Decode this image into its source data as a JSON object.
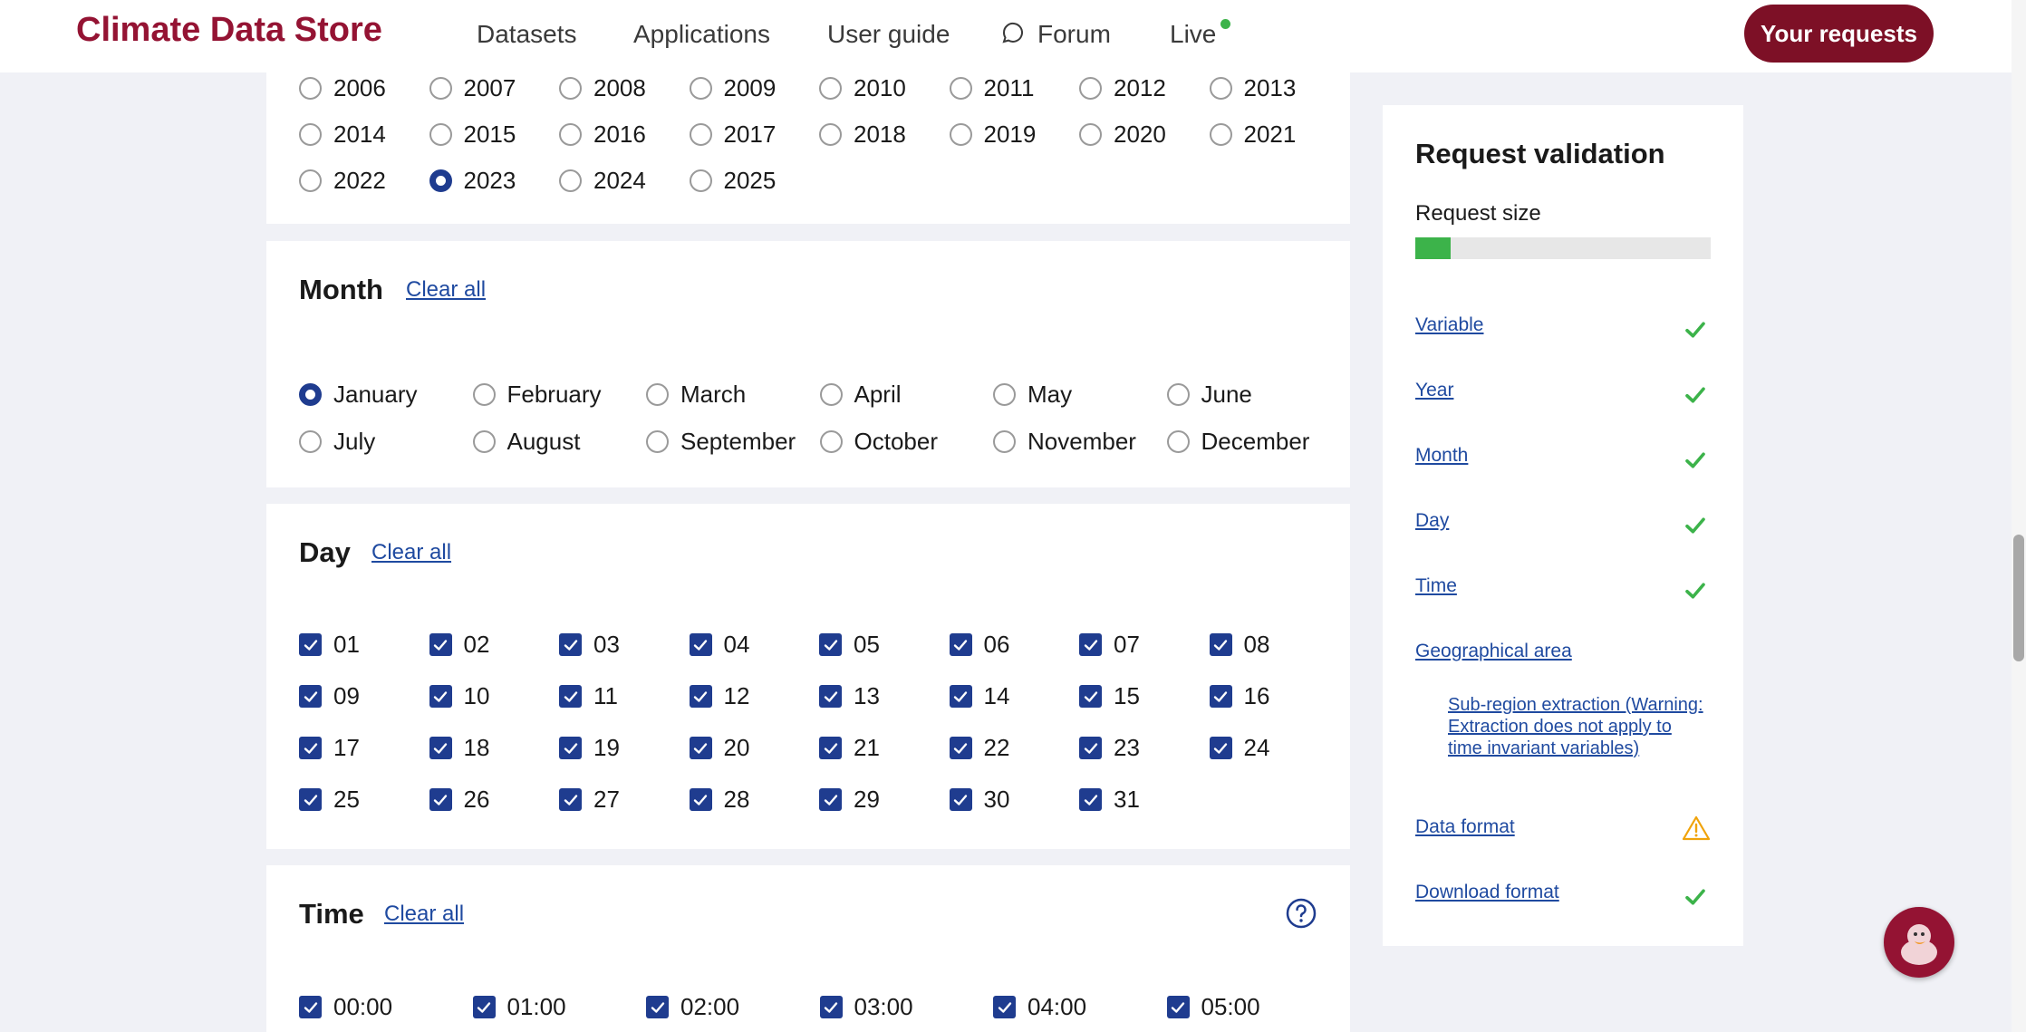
{
  "header": {
    "logo": "Climate Data Store",
    "nav": [
      "Datasets",
      "Applications",
      "User guide",
      "Forum",
      "Live"
    ],
    "requests_button": "Your requests"
  },
  "year": {
    "options": [
      "2006",
      "2007",
      "2008",
      "2009",
      "2010",
      "2011",
      "2012",
      "2013",
      "2014",
      "2015",
      "2016",
      "2017",
      "2018",
      "2019",
      "2020",
      "2021",
      "2022",
      "2023",
      "2024",
      "2025"
    ],
    "selected": "2023"
  },
  "month": {
    "title": "Month",
    "clear": "Clear all",
    "options": [
      "January",
      "February",
      "March",
      "April",
      "May",
      "June",
      "July",
      "August",
      "September",
      "October",
      "November",
      "December"
    ],
    "selected": "January"
  },
  "day": {
    "title": "Day",
    "clear": "Clear all",
    "options": [
      "01",
      "02",
      "03",
      "04",
      "05",
      "06",
      "07",
      "08",
      "09",
      "10",
      "11",
      "12",
      "13",
      "14",
      "15",
      "16",
      "17",
      "18",
      "19",
      "20",
      "21",
      "22",
      "23",
      "24",
      "25",
      "26",
      "27",
      "28",
      "29",
      "30",
      "31"
    ],
    "all_checked": true
  },
  "time": {
    "title": "Time",
    "clear": "Clear all",
    "options": [
      "00:00",
      "01:00",
      "02:00",
      "03:00",
      "04:00",
      "05:00"
    ],
    "all_checked": true
  },
  "validation": {
    "title": "Request validation",
    "size_label": "Request size",
    "size_fraction": 0.12,
    "items": [
      {
        "label": "Variable",
        "status": "ok"
      },
      {
        "label": "Year",
        "status": "ok"
      },
      {
        "label": "Month",
        "status": "ok"
      },
      {
        "label": "Day",
        "status": "ok"
      },
      {
        "label": "Time",
        "status": "ok"
      },
      {
        "label": "Geographical area",
        "status": "none"
      },
      {
        "label": "Sub-region extraction (Warning: Extraction does not apply to time invariant variables)",
        "status": "none"
      },
      {
        "label": "Data format",
        "status": "warning"
      },
      {
        "label": "Download format",
        "status": "ok"
      }
    ]
  },
  "colors": {
    "brand": "#941333",
    "link": "#1f4aa0",
    "check": "#1f3c8f",
    "ok": "#3cb34a",
    "warning": "#f0a30a"
  }
}
